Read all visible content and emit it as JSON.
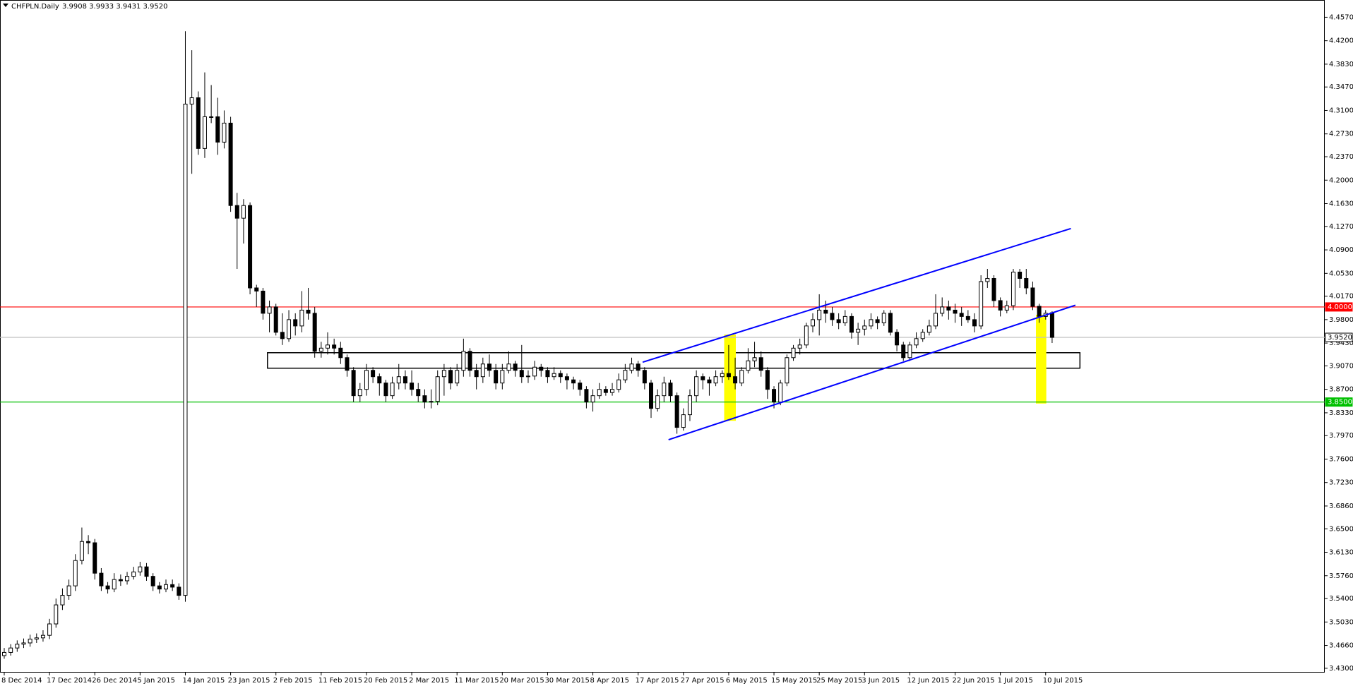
{
  "chart_data": {
    "type": "candlestick",
    "symbol": "CHFPLN.Daily",
    "header_values": "3.9908 3.9933 3.9431 3.9520",
    "ylim": [
      3.4232,
      4.4842
    ],
    "yticks": [
      {
        "value": 4.457,
        "label": "4.4570"
      },
      {
        "value": 4.42,
        "label": "4.4200"
      },
      {
        "value": 4.383,
        "label": "4.3830"
      },
      {
        "value": 4.347,
        "label": "4.3470"
      },
      {
        "value": 4.31,
        "label": "4.3100"
      },
      {
        "value": 4.273,
        "label": "4.2730"
      },
      {
        "value": 4.237,
        "label": "4.2370"
      },
      {
        "value": 4.2,
        "label": "4.2000"
      },
      {
        "value": 4.163,
        "label": "4.1630"
      },
      {
        "value": 4.127,
        "label": "4.1270"
      },
      {
        "value": 4.09,
        "label": "4.0900"
      },
      {
        "value": 4.053,
        "label": "4.0530"
      },
      {
        "value": 4.017,
        "label": "4.0170"
      },
      {
        "value": 3.98,
        "label": "3.9800"
      },
      {
        "value": 3.943,
        "label": "3.9430"
      },
      {
        "value": 3.907,
        "label": "3.9070"
      },
      {
        "value": 3.87,
        "label": "3.8700"
      },
      {
        "value": 3.833,
        "label": "3.8330"
      },
      {
        "value": 3.797,
        "label": "3.7970"
      },
      {
        "value": 3.76,
        "label": "3.7600"
      },
      {
        "value": 3.723,
        "label": "3.7230"
      },
      {
        "value": 3.686,
        "label": "3.6860"
      },
      {
        "value": 3.65,
        "label": "3.6500"
      },
      {
        "value": 3.613,
        "label": "3.6130"
      },
      {
        "value": 3.576,
        "label": "3.5760"
      },
      {
        "value": 3.54,
        "label": "3.5400"
      },
      {
        "value": 3.503,
        "label": "3.5030"
      },
      {
        "value": 3.466,
        "label": "3.4660"
      },
      {
        "value": 3.43,
        "label": "3.4300"
      }
    ],
    "categories": [
      "8 Dec 2014",
      null,
      null,
      null,
      null,
      null,
      null,
      "17 Dec 2014",
      null,
      null,
      null,
      null,
      null,
      null,
      "26 Dec 2014",
      null,
      null,
      null,
      null,
      null,
      null,
      "5 Jan 2015",
      null,
      null,
      null,
      null,
      null,
      null,
      "14 Jan 2015",
      null,
      null,
      null,
      null,
      null,
      null,
      "23 Jan 2015",
      null,
      null,
      null,
      null,
      null,
      null,
      "2 Feb 2015",
      null,
      null,
      null,
      null,
      null,
      null,
      "11 Feb 2015",
      null,
      null,
      null,
      null,
      null,
      null,
      "20 Feb 2015",
      null,
      null,
      null,
      null,
      null,
      null,
      "2 Mar 2015",
      null,
      null,
      null,
      null,
      null,
      null,
      "11 Mar 2015",
      null,
      null,
      null,
      null,
      null,
      null,
      "20 Mar 2015",
      null,
      null,
      null,
      null,
      null,
      null,
      "30 Mar 2015",
      null,
      null,
      null,
      null,
      null,
      null,
      "8 Apr 2015",
      null,
      null,
      null,
      null,
      null,
      null,
      "17 Apr 2015",
      null,
      null,
      null,
      null,
      null,
      null,
      "27 Apr 2015",
      null,
      null,
      null,
      null,
      null,
      null,
      "6 May 2015",
      null,
      null,
      null,
      null,
      null,
      null,
      "15 May 2015",
      null,
      null,
      null,
      null,
      null,
      null,
      "25 May 2015",
      null,
      null,
      null,
      null,
      null,
      null,
      "3 Jun 2015",
      null,
      null,
      null,
      null,
      null,
      null,
      "12 Jun 2015",
      null,
      null,
      null,
      null,
      null,
      null,
      "22 Jun 2015",
      null,
      null,
      null,
      null,
      null,
      null,
      "1 Jul 2015",
      null,
      null,
      null,
      null,
      null,
      null,
      "10 Jul 2015",
      null
    ],
    "ohlc": [
      [
        3.45,
        3.462,
        3.445,
        3.455
      ],
      [
        3.455,
        3.468,
        3.45,
        3.462
      ],
      [
        3.462,
        3.474,
        3.456,
        3.468
      ],
      [
        3.468,
        3.477,
        3.462,
        3.47
      ],
      [
        3.47,
        3.483,
        3.464,
        3.476
      ],
      [
        3.476,
        3.485,
        3.47,
        3.478
      ],
      [
        3.478,
        3.49,
        3.472,
        3.482
      ],
      [
        3.482,
        3.508,
        3.476,
        3.5
      ],
      [
        3.5,
        3.54,
        3.494,
        3.53
      ],
      [
        3.53,
        3.556,
        3.522,
        3.545
      ],
      [
        3.545,
        3.57,
        3.538,
        3.56
      ],
      [
        3.56,
        3.61,
        3.552,
        3.6
      ],
      [
        3.6,
        3.652,
        3.594,
        3.63
      ],
      [
        3.63,
        3.64,
        3.61,
        3.628
      ],
      [
        3.628,
        3.634,
        3.57,
        3.58
      ],
      [
        3.58,
        3.588,
        3.552,
        3.56
      ],
      [
        3.56,
        3.566,
        3.548,
        3.555
      ],
      [
        3.555,
        3.58,
        3.55,
        3.57
      ],
      [
        3.57,
        3.578,
        3.56,
        3.568
      ],
      [
        3.568,
        3.582,
        3.562,
        3.575
      ],
      [
        3.575,
        3.59,
        3.57,
        3.582
      ],
      [
        3.582,
        3.598,
        3.576,
        3.59
      ],
      [
        3.59,
        3.596,
        3.568,
        3.575
      ],
      [
        3.575,
        3.58,
        3.552,
        3.56
      ],
      [
        3.56,
        3.566,
        3.548,
        3.555
      ],
      [
        3.555,
        3.57,
        3.55,
        3.562
      ],
      [
        3.562,
        3.57,
        3.552,
        3.558
      ],
      [
        3.558,
        3.564,
        3.538,
        3.545
      ],
      [
        3.545,
        4.435,
        3.535,
        4.32
      ],
      [
        4.32,
        4.405,
        4.21,
        4.33
      ],
      [
        4.33,
        4.34,
        4.24,
        4.25
      ],
      [
        4.25,
        4.37,
        4.235,
        4.3
      ],
      [
        4.3,
        4.35,
        4.29,
        4.3
      ],
      [
        4.3,
        4.33,
        4.24,
        4.26
      ],
      [
        4.26,
        4.31,
        4.25,
        4.29
      ],
      [
        4.29,
        4.3,
        4.15,
        4.16
      ],
      [
        4.16,
        4.18,
        4.06,
        4.14
      ],
      [
        4.14,
        4.17,
        4.1,
        4.16
      ],
      [
        4.16,
        4.165,
        4.02,
        4.03
      ],
      [
        4.03,
        4.035,
        4.0,
        4.025
      ],
      [
        4.025,
        4.03,
        3.98,
        3.99
      ],
      [
        3.99,
        4.01,
        3.96,
        4.0
      ],
      [
        4.0,
        4.005,
        3.955,
        3.96
      ],
      [
        3.96,
        3.99,
        3.94,
        3.95
      ],
      [
        3.95,
        3.995,
        3.945,
        3.98
      ],
      [
        3.98,
        3.99,
        3.955,
        3.97
      ],
      [
        3.97,
        4.025,
        3.96,
        3.995
      ],
      [
        3.995,
        4.03,
        3.98,
        3.99
      ],
      [
        3.99,
        4.0,
        3.92,
        3.93
      ],
      [
        3.93,
        3.945,
        3.92,
        3.935
      ],
      [
        3.935,
        3.96,
        3.925,
        3.94
      ],
      [
        3.94,
        3.95,
        3.925,
        3.935
      ],
      [
        3.935,
        3.945,
        3.91,
        3.92
      ],
      [
        3.92,
        3.925,
        3.89,
        3.9
      ],
      [
        3.9,
        3.905,
        3.85,
        3.86
      ],
      [
        3.86,
        3.88,
        3.85,
        3.87
      ],
      [
        3.87,
        3.91,
        3.86,
        3.9
      ],
      [
        3.9,
        3.905,
        3.88,
        3.89
      ],
      [
        3.89,
        3.895,
        3.86,
        3.88
      ],
      [
        3.88,
        3.885,
        3.85,
        3.86
      ],
      [
        3.86,
        3.89,
        3.855,
        3.88
      ],
      [
        3.88,
        3.91,
        3.87,
        3.89
      ],
      [
        3.89,
        3.9,
        3.87,
        3.88
      ],
      [
        3.88,
        3.9,
        3.86,
        3.87
      ],
      [
        3.87,
        3.88,
        3.85,
        3.86
      ],
      [
        3.86,
        3.87,
        3.84,
        3.85
      ],
      [
        3.85,
        3.87,
        3.84,
        3.851
      ],
      [
        3.851,
        3.9,
        3.845,
        3.89
      ],
      [
        3.89,
        3.91,
        3.86,
        3.9
      ],
      [
        3.9,
        3.905,
        3.87,
        3.88
      ],
      [
        3.88,
        3.91,
        3.875,
        3.9
      ],
      [
        3.9,
        3.95,
        3.89,
        3.93
      ],
      [
        3.93,
        3.935,
        3.89,
        3.9
      ],
      [
        3.9,
        3.91,
        3.87,
        3.89
      ],
      [
        3.89,
        3.92,
        3.88,
        3.91
      ],
      [
        3.91,
        3.925,
        3.89,
        3.9
      ],
      [
        3.9,
        3.91,
        3.87,
        3.88
      ],
      [
        3.88,
        3.91,
        3.87,
        3.9
      ],
      [
        3.9,
        3.93,
        3.895,
        3.91
      ],
      [
        3.91,
        3.915,
        3.89,
        3.9
      ],
      [
        3.9,
        3.94,
        3.88,
        3.89
      ],
      [
        3.89,
        3.9,
        3.88,
        3.891
      ],
      [
        3.891,
        3.915,
        3.885,
        3.905
      ],
      [
        3.905,
        3.91,
        3.89,
        3.9
      ],
      [
        3.9,
        3.905,
        3.88,
        3.89
      ],
      [
        3.89,
        3.905,
        3.885,
        3.895
      ],
      [
        3.895,
        3.9,
        3.88,
        3.89
      ],
      [
        3.89,
        3.895,
        3.87,
        3.885
      ],
      [
        3.885,
        3.89,
        3.87,
        3.88
      ],
      [
        3.88,
        3.885,
        3.86,
        3.87
      ],
      [
        3.87,
        3.875,
        3.84,
        3.85
      ],
      [
        3.85,
        3.87,
        3.835,
        3.86
      ],
      [
        3.86,
        3.88,
        3.855,
        3.87
      ],
      [
        3.87,
        3.875,
        3.86,
        3.865
      ],
      [
        3.865,
        3.88,
        3.86,
        3.87
      ],
      [
        3.87,
        3.895,
        3.865,
        3.885
      ],
      [
        3.885,
        3.91,
        3.88,
        3.9
      ],
      [
        3.9,
        3.92,
        3.895,
        3.91
      ],
      [
        3.91,
        3.915,
        3.89,
        3.9
      ],
      [
        3.9,
        3.905,
        3.87,
        3.88
      ],
      [
        3.88,
        3.885,
        3.825,
        3.84
      ],
      [
        3.84,
        3.87,
        3.835,
        3.86
      ],
      [
        3.86,
        3.89,
        3.85,
        3.88
      ],
      [
        3.88,
        3.885,
        3.85,
        3.86
      ],
      [
        3.86,
        3.865,
        3.8,
        3.81
      ],
      [
        3.81,
        3.84,
        3.805,
        3.83
      ],
      [
        3.83,
        3.87,
        3.82,
        3.86
      ],
      [
        3.86,
        3.9,
        3.85,
        3.89
      ],
      [
        3.89,
        3.895,
        3.87,
        3.885
      ],
      [
        3.885,
        3.89,
        3.86,
        3.88
      ],
      [
        3.88,
        3.9,
        3.875,
        3.89
      ],
      [
        3.89,
        3.9,
        3.88,
        3.895
      ],
      [
        3.895,
        3.94,
        3.885,
        3.89
      ],
      [
        3.89,
        3.92,
        3.87,
        3.88
      ],
      [
        3.88,
        3.905,
        3.875,
        3.9
      ],
      [
        3.9,
        3.935,
        3.895,
        3.915
      ],
      [
        3.915,
        3.945,
        3.905,
        3.92
      ],
      [
        3.92,
        3.93,
        3.89,
        3.9
      ],
      [
        3.9,
        3.905,
        3.855,
        3.87
      ],
      [
        3.87,
        3.875,
        3.84,
        3.85
      ],
      [
        3.85,
        3.885,
        3.845,
        3.88
      ],
      [
        3.88,
        3.925,
        3.875,
        3.92
      ],
      [
        3.92,
        3.94,
        3.915,
        3.935
      ],
      [
        3.935,
        3.95,
        3.925,
        3.94
      ],
      [
        3.94,
        3.975,
        3.935,
        3.97
      ],
      [
        3.97,
        3.99,
        3.96,
        3.98
      ],
      [
        3.98,
        4.02,
        3.955,
        3.995
      ],
      [
        3.995,
        4.01,
        3.975,
        3.99
      ],
      [
        3.99,
        4.0,
        3.97,
        3.98
      ],
      [
        3.98,
        3.99,
        3.965,
        3.975
      ],
      [
        3.975,
        3.995,
        3.97,
        3.985
      ],
      [
        3.985,
        3.99,
        3.95,
        3.96
      ],
      [
        3.96,
        3.975,
        3.94,
        3.965
      ],
      [
        3.965,
        3.98,
        3.955,
        3.97
      ],
      [
        3.97,
        3.99,
        3.965,
        3.98
      ],
      [
        3.98,
        3.985,
        3.965,
        3.975
      ],
      [
        3.975,
        3.995,
        3.97,
        3.99
      ],
      [
        3.99,
        3.995,
        3.955,
        3.96
      ],
      [
        3.96,
        3.965,
        3.93,
        3.94
      ],
      [
        3.94,
        3.945,
        3.915,
        3.92
      ],
      [
        3.92,
        3.945,
        3.915,
        3.94
      ],
      [
        3.94,
        3.96,
        3.935,
        3.95
      ],
      [
        3.95,
        3.965,
        3.945,
        3.96
      ],
      [
        3.96,
        3.98,
        3.955,
        3.97
      ],
      [
        3.97,
        4.02,
        3.965,
        3.99
      ],
      [
        3.99,
        4.015,
        3.985,
        4.0
      ],
      [
        4.0,
        4.01,
        3.98,
        3.995
      ],
      [
        3.995,
        4.005,
        3.975,
        3.99
      ],
      [
        3.99,
        4.0,
        3.97,
        3.985
      ],
      [
        3.985,
        3.995,
        3.975,
        3.98
      ],
      [
        3.98,
        3.99,
        3.96,
        3.97
      ],
      [
        3.97,
        4.05,
        3.965,
        4.04
      ],
      [
        4.04,
        4.06,
        4.03,
        4.045
      ],
      [
        4.045,
        4.05,
        4.0,
        4.01
      ],
      [
        4.01,
        4.015,
        3.985,
        3.995
      ],
      [
        3.995,
        4.01,
        3.99,
        4.002
      ],
      [
        4.002,
        4.06,
        3.995,
        4.055
      ],
      [
        4.055,
        4.06,
        4.03,
        4.045
      ],
      [
        4.045,
        4.06,
        4.02,
        4.03
      ],
      [
        4.03,
        4.04,
        3.995,
        4.001
      ],
      [
        4.001,
        4.005,
        3.975,
        3.985
      ],
      [
        3.985,
        3.995,
        3.98,
        3.99
      ],
      [
        3.9908,
        3.9933,
        3.9431,
        3.952
      ]
    ],
    "levels": [
      {
        "value": 4.0,
        "label": "4.0000",
        "color": "#ff0000"
      },
      {
        "value": 3.952,
        "label": "3.9520",
        "color": "#c0c0c0"
      },
      {
        "value": 3.85,
        "label": "3.8500",
        "color": "#00c000"
      }
    ],
    "trendlines": [
      {
        "x": [
          102.7,
          165.6
        ],
        "y": [
          3.7905,
          4.0027
        ],
        "color": "#0000ff"
      },
      {
        "x": [
          98.7,
          164.9
        ],
        "y": [
          3.9129,
          4.1237
        ],
        "color": "#0000ff"
      }
    ],
    "zones": [
      {
        "x": [
          40.7,
          166.3
        ],
        "y": [
          3.9278,
          3.9034
        ],
        "color": "none",
        "stroke": "#000000"
      },
      {
        "x": [
          111.3,
          113.1
        ],
        "y": [
          3.9564,
          3.8204
        ],
        "color": "#ffff00",
        "stroke": "none"
      },
      {
        "x": [
          159.5,
          161.1
        ],
        "y": [
          3.9877,
          3.8476
        ],
        "color": "#ffff00",
        "stroke": "none"
      }
    ]
  }
}
